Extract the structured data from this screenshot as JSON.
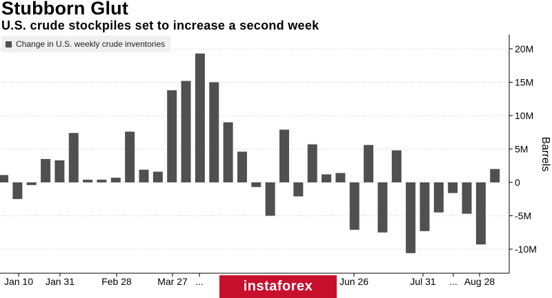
{
  "header": {
    "title": "Stubborn Glut",
    "subtitle": "U.S. crude stockpiles set to increase a second week"
  },
  "legend": {
    "label": "Change in U.S. weekly crude inventories"
  },
  "watermark": {
    "text": "instaforex"
  },
  "colors": {
    "bar": "#505050",
    "grid": "#c9c9c9",
    "axis": "#000000",
    "watermark": "#c8102e"
  },
  "chart_data": {
    "type": "bar",
    "title": "Stubborn Glut",
    "subtitle": "U.S. crude stockpiles set to increase a second week",
    "ylabel": "Barrels",
    "xlabel": "",
    "ylim": [
      -12,
      22
    ],
    "yticks": [
      20,
      15,
      10,
      5,
      0,
      -5,
      -10
    ],
    "ytick_labels": [
      "20M",
      "15M",
      "10M",
      "5M",
      "0",
      "-5M",
      "-10M"
    ],
    "xtick_labels": [
      "Jan 10",
      "Jan 31",
      "Feb 28",
      "Mar 27",
      "...",
      "Jun 26",
      "Jul 31",
      "...",
      "Aug 28"
    ],
    "grid": true,
    "legend_position": "top-left",
    "series": [
      {
        "name": "Change in U.S. weekly crude inventories",
        "values": [
          1.1,
          -2.5,
          -0.4,
          3.5,
          3.3,
          7.4,
          0.4,
          0.4,
          0.7,
          7.6,
          1.9,
          1.6,
          13.8,
          15.2,
          19.3,
          15.0,
          9.0,
          4.6,
          -0.7,
          -5.0,
          7.9,
          -2.1,
          5.7,
          1.2,
          1.4,
          -7.1,
          5.6,
          -7.5,
          4.8,
          -10.6,
          -7.3,
          -4.5,
          -1.6,
          -4.7,
          -9.3,
          2.0
        ]
      }
    ]
  }
}
